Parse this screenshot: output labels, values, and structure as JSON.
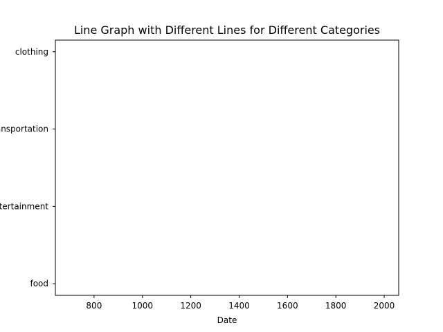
{
  "chart_data": {
    "type": "line",
    "title": "Line Graph with Different Lines for Different Categories",
    "xlabel": "Date",
    "ylabel": "",
    "xlim": [
      640,
      2060
    ],
    "x_ticks": [
      800,
      1000,
      1200,
      1400,
      1600,
      1800,
      2000
    ],
    "categories": [
      "food",
      "entertainment",
      "transportation",
      "clothing"
    ],
    "series": [],
    "grid": false,
    "legend": "none"
  }
}
